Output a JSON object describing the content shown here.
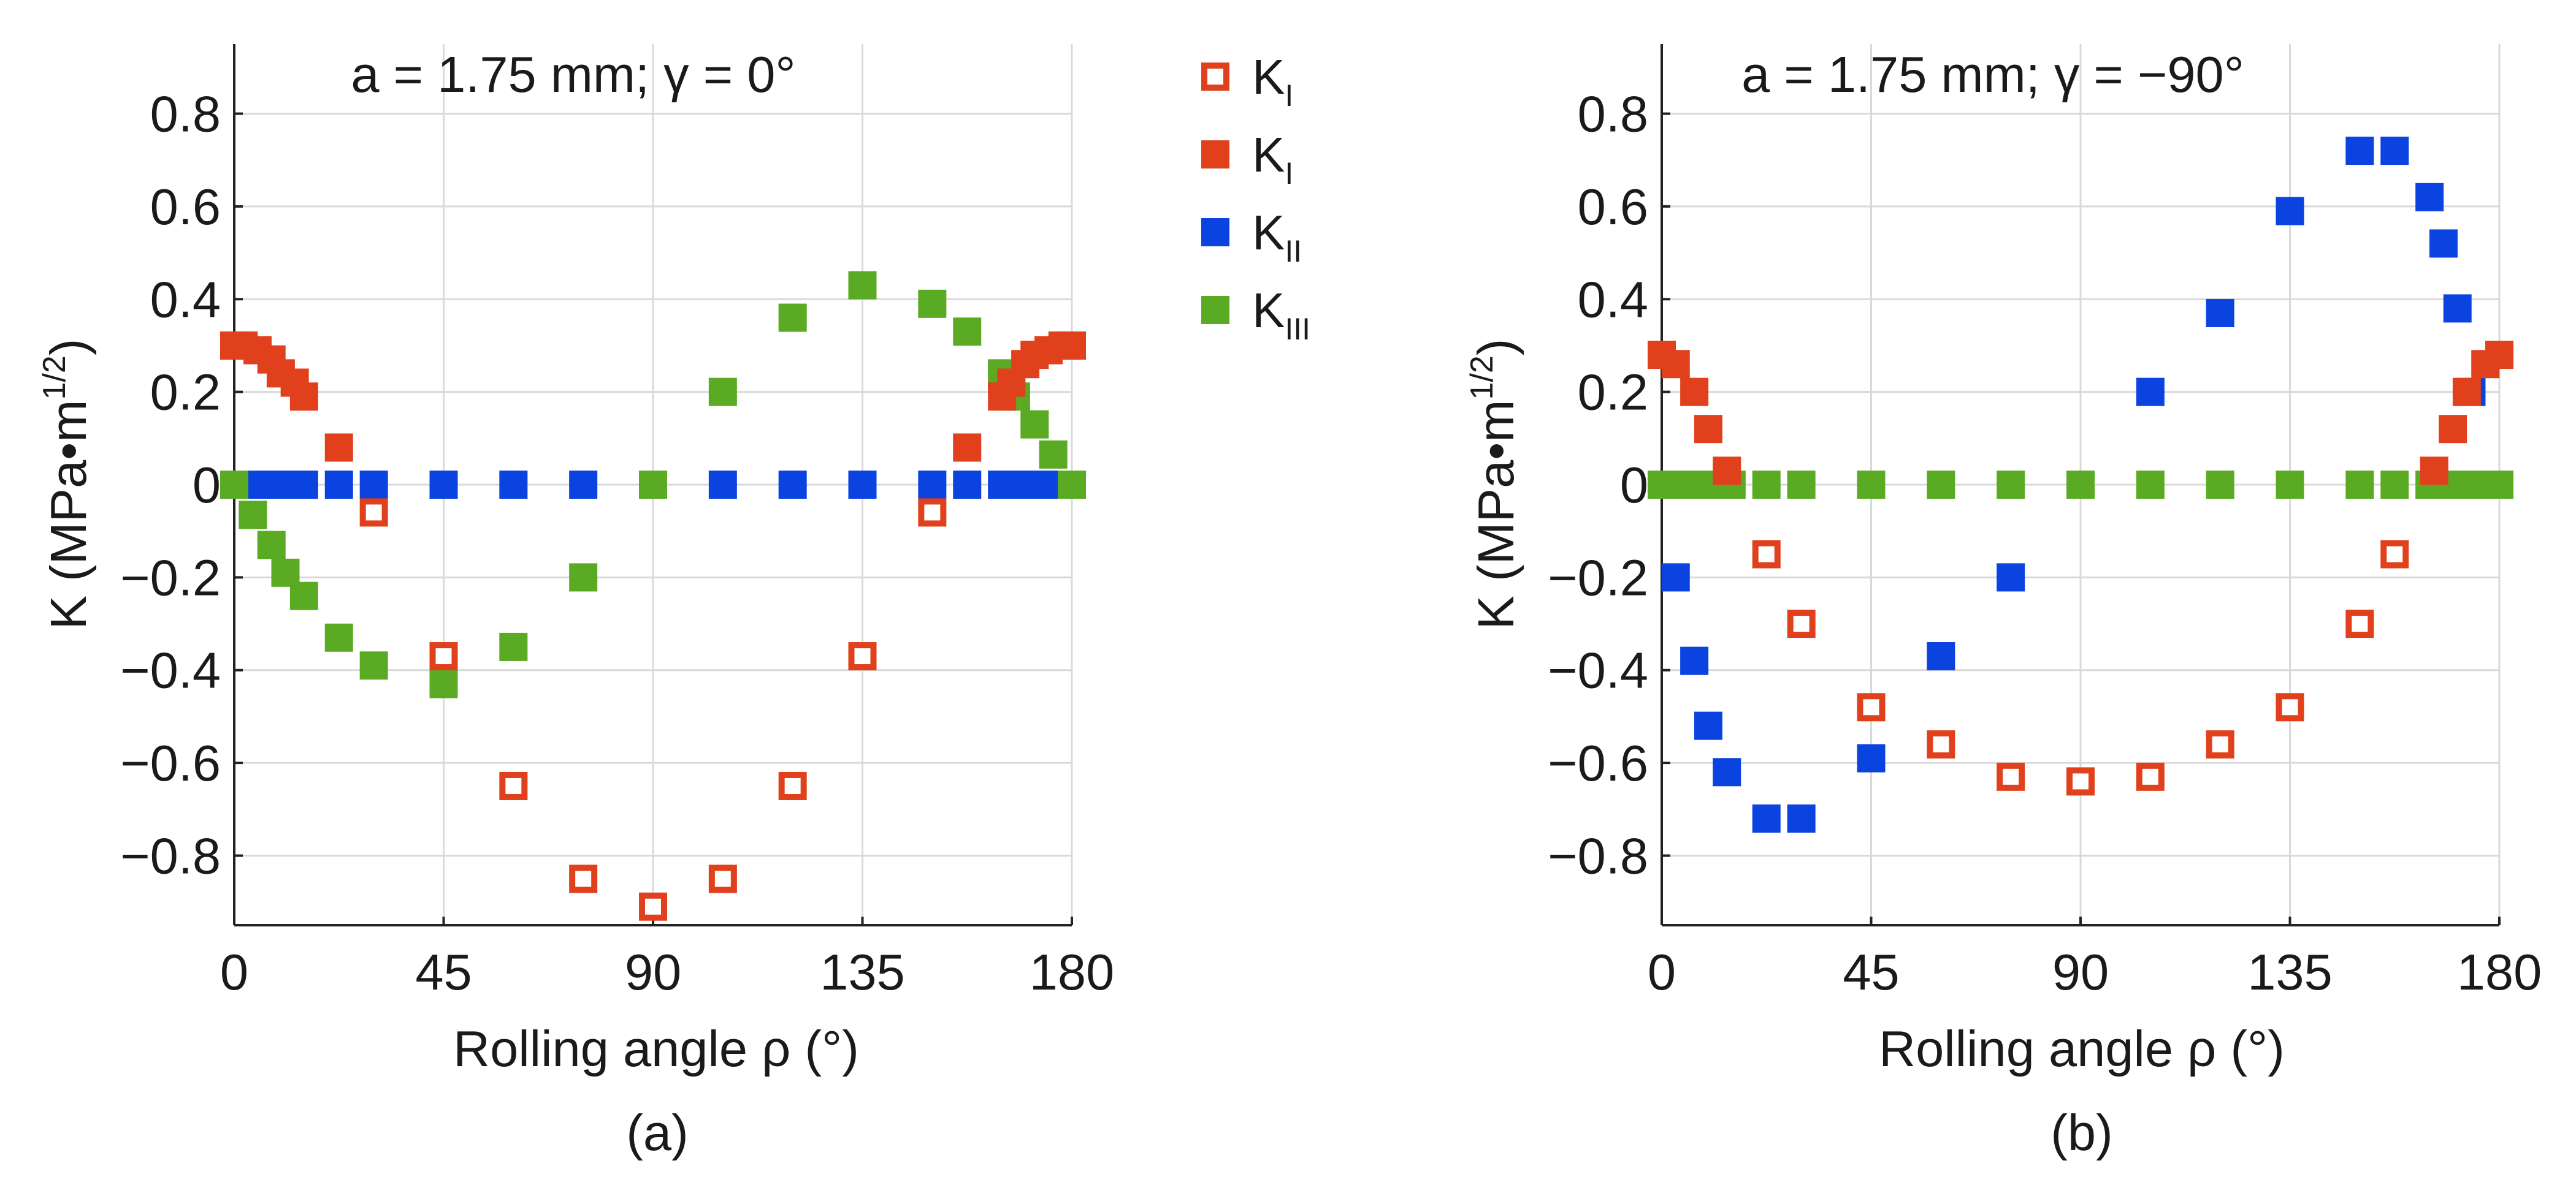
{
  "colors": {
    "open_red": "#e0401b",
    "red": "#e0401b",
    "blue": "#0a43e0",
    "green": "#5aab23",
    "grid": "#d9d9d9",
    "axis": "#222222"
  },
  "legend": {
    "entries": [
      {
        "base": "K",
        "sub": "I",
        "style": "open",
        "color": "#e0401b"
      },
      {
        "base": "K",
        "sub": "I",
        "style": "filled",
        "color": "#e0401b"
      },
      {
        "base": "K",
        "sub": "II",
        "style": "filled",
        "color": "#0a43e0"
      },
      {
        "base": "K",
        "sub": "III",
        "style": "filled",
        "color": "#5aab23"
      }
    ]
  },
  "chart_data": [
    {
      "type": "scatter",
      "panel_label": "(a)",
      "title": "a = 1.75 mm; γ  = 0°",
      "xlabel": "Rolling angle ρ  (°)",
      "ylabel_main": "K (MPa•m",
      "ylabel_sup": "1/2",
      "ylabel_close": ")",
      "xlim": [
        0,
        180
      ],
      "ylim": [
        -0.95,
        0.95
      ],
      "xticks": [
        0,
        45,
        90,
        135,
        180
      ],
      "xticklabels": [
        "0",
        "45",
        "90",
        "135",
        "180"
      ],
      "yticks": [
        0.8,
        0.6,
        0.4,
        0.2,
        0,
        -0.2,
        -0.4,
        -0.6,
        -0.8
      ],
      "yticklabels": [
        "0.8",
        "0.6",
        "0.4",
        "0.2",
        "0",
        "−0.2",
        "−0.4",
        "−0.6",
        "−0.8"
      ],
      "series": [
        {
          "name": "K_I (open)",
          "style": "open",
          "color": "#e0401b",
          "x": [
            30,
            45,
            60,
            75,
            90,
            105,
            120,
            135,
            150
          ],
          "y": [
            -0.06,
            -0.37,
            -0.65,
            -0.85,
            -0.91,
            -0.85,
            -0.65,
            -0.37,
            -0.06
          ]
        },
        {
          "name": "K_I (filled)",
          "style": "filled",
          "color": "#e0401b",
          "x": [
            0,
            2,
            5,
            8,
            10,
            13,
            15,
            22.5,
            157.5,
            165,
            167,
            170,
            172,
            175,
            178,
            180
          ],
          "y": [
            0.3,
            0.3,
            0.29,
            0.27,
            0.24,
            0.22,
            0.19,
            0.08,
            0.08,
            0.19,
            0.22,
            0.26,
            0.28,
            0.29,
            0.3,
            0.3
          ]
        },
        {
          "name": "K_II",
          "style": "filled",
          "color": "#0a43e0",
          "x": [
            0,
            3,
            6,
            9,
            12,
            15,
            22.5,
            30,
            45,
            60,
            75,
            90,
            105,
            120,
            135,
            150,
            157.5,
            165,
            168,
            171,
            174,
            177,
            180
          ],
          "y": [
            0,
            0,
            0,
            0,
            0,
            0,
            0,
            0,
            0,
            0,
            0,
            0,
            0,
            0,
            0,
            0,
            0,
            0,
            0,
            0,
            0,
            0,
            0
          ]
        },
        {
          "name": "K_III",
          "style": "filled",
          "color": "#5aab23",
          "x": [
            0,
            4,
            8,
            11,
            15,
            22.5,
            30,
            45,
            60,
            75,
            90,
            105,
            120,
            135,
            150,
            157.5,
            165,
            168,
            172,
            176,
            180
          ],
          "y": [
            0,
            -0.065,
            -0.13,
            -0.19,
            -0.24,
            -0.33,
            -0.39,
            -0.43,
            -0.35,
            -0.2,
            0,
            0.2,
            0.36,
            0.43,
            0.39,
            0.33,
            0.24,
            0.19,
            0.13,
            0.065,
            0
          ]
        }
      ]
    },
    {
      "type": "scatter",
      "panel_label": "(b)",
      "title": "a = 1.75 mm; γ  = −90°",
      "xlabel": "Rolling angle ρ  (°)",
      "ylabel_main": "K (MPa•m",
      "ylabel_sup": "1/2",
      "ylabel_close": ")",
      "xlim": [
        0,
        180
      ],
      "ylim": [
        -0.95,
        0.95
      ],
      "xticks": [
        0,
        45,
        90,
        135,
        180
      ],
      "xticklabels": [
        "0",
        "45",
        "90",
        "135",
        "180"
      ],
      "yticks": [
        0.8,
        0.6,
        0.4,
        0.2,
        0,
        -0.2,
        -0.4,
        -0.6,
        -0.8
      ],
      "yticklabels": [
        "0.8",
        "0.6",
        "0.4",
        "0.2",
        "0",
        "−0.2",
        "−0.4",
        "−0.6",
        "−0.8"
      ],
      "series": [
        {
          "name": "K_I (open)",
          "style": "open",
          "color": "#e0401b",
          "x": [
            22.5,
            30,
            45,
            60,
            75,
            90,
            105,
            120,
            135,
            150,
            157.5
          ],
          "y": [
            -0.15,
            -0.3,
            -0.48,
            -0.56,
            -0.63,
            -0.64,
            -0.63,
            -0.56,
            -0.48,
            -0.3,
            -0.15
          ]
        },
        {
          "name": "K_I (filled)",
          "style": "filled",
          "color": "#e0401b",
          "x": [
            0,
            3,
            7,
            10,
            14,
            166,
            170,
            173,
            177,
            180
          ],
          "y": [
            0.28,
            0.26,
            0.2,
            0.12,
            0.03,
            0.03,
            0.12,
            0.2,
            0.26,
            0.28
          ]
        },
        {
          "name": "K_II",
          "style": "filled",
          "color": "#0a43e0",
          "x": [
            3,
            7,
            10,
            14,
            22.5,
            30,
            45,
            60,
            75,
            105,
            120,
            135,
            150,
            157.5,
            165,
            168,
            171,
            174
          ],
          "y": [
            -0.2,
            -0.38,
            -0.52,
            -0.62,
            -0.72,
            -0.72,
            -0.59,
            -0.37,
            -0.2,
            0.2,
            0.37,
            0.59,
            0.72,
            0.72,
            0.62,
            0.52,
            0.38,
            0.2
          ]
        },
        {
          "name": "K_III",
          "style": "filled",
          "color": "#5aab23",
          "x": [
            0,
            3,
            6,
            9,
            12,
            15,
            22.5,
            30,
            45,
            60,
            75,
            90,
            105,
            120,
            135,
            150,
            157.5,
            165,
            168,
            171,
            174,
            177,
            180
          ],
          "y": [
            0,
            0,
            0,
            0,
            0,
            0,
            0,
            0,
            0,
            0,
            0,
            0,
            0,
            0,
            0,
            0,
            0,
            0,
            0,
            0,
            0,
            0,
            0
          ]
        }
      ]
    }
  ]
}
